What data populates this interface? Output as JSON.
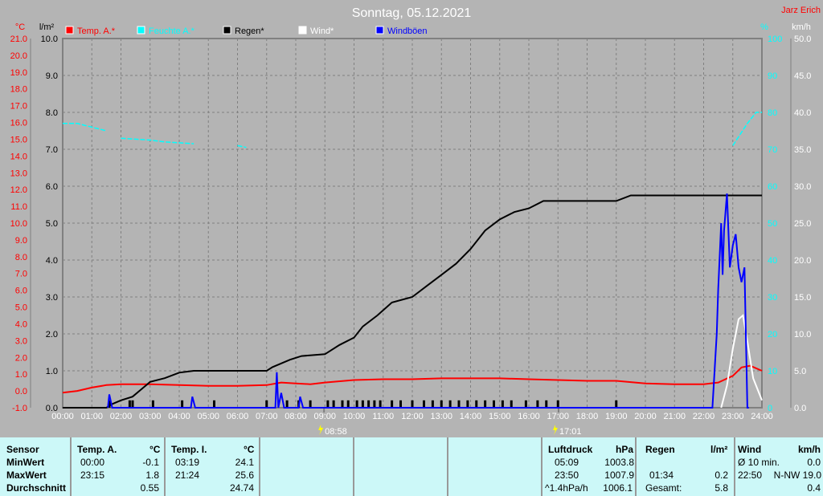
{
  "title": "Sonntag, 05.12.2021",
  "author": "Jarz Erich",
  "colors": {
    "temp": "#ff0000",
    "humidity": "#00ffff",
    "rain": "#000000",
    "wind": "#ffffff",
    "gust": "#0000ff",
    "background": "#b4b4b4",
    "table": "#ccf8f8"
  },
  "chart_data": {
    "type": "line",
    "title": "Sonntag, 05.12.2021",
    "legend": [
      {
        "name": "Temp. A.*",
        "color": "#ff0000"
      },
      {
        "name": "Feuchte A.*",
        "color": "#00ffff"
      },
      {
        "name": "Regen*",
        "color": "#000000"
      },
      {
        "name": "Wind*",
        "color": "#ffffff"
      },
      {
        "name": "Windböen",
        "color": "#0000ff"
      }
    ],
    "legend_placement": "top",
    "grid": true,
    "x_ticks": [
      "00:00",
      "01:00",
      "02:00",
      "03:00",
      "04:00",
      "05:00",
      "06:00",
      "07:00",
      "08:00",
      "09:00",
      "10:00",
      "11:00",
      "12:00",
      "13:00",
      "14:00",
      "15:00",
      "16:00",
      "17:00",
      "18:00",
      "19:00",
      "20:00",
      "21:00",
      "22:00",
      "23:00",
      "24:00"
    ],
    "x_range_hours": [
      0,
      24
    ],
    "axes": {
      "temp": {
        "unit": "°C",
        "range": [
          -1,
          21
        ],
        "step": 1
      },
      "rain": {
        "unit": "l/m²",
        "range": [
          0,
          10
        ],
        "step": 1
      },
      "humidity": {
        "unit": "%",
        "range": [
          0,
          100
        ],
        "step": 10
      },
      "wind": {
        "unit": "km/h",
        "range": [
          0,
          50
        ],
        "step": 5
      }
    },
    "annotations": [
      {
        "label": "08:58",
        "hour": 8.97,
        "type": "sunrise"
      },
      {
        "label": "17:01",
        "hour": 17.02,
        "type": "sunset"
      }
    ],
    "series": [
      {
        "name": "Temp. A.*",
        "axis": "temp",
        "color": "#ff0000",
        "points": [
          [
            0,
            -0.1
          ],
          [
            0.5,
            0.0
          ],
          [
            1,
            0.2
          ],
          [
            1.5,
            0.35
          ],
          [
            2,
            0.4
          ],
          [
            3,
            0.4
          ],
          [
            4,
            0.35
          ],
          [
            5,
            0.3
          ],
          [
            6,
            0.3
          ],
          [
            7,
            0.35
          ],
          [
            7.5,
            0.5
          ],
          [
            8,
            0.45
          ],
          [
            8.5,
            0.4
          ],
          [
            9,
            0.5
          ],
          [
            10,
            0.65
          ],
          [
            11,
            0.7
          ],
          [
            12,
            0.7
          ],
          [
            13,
            0.75
          ],
          [
            14,
            0.75
          ],
          [
            15,
            0.75
          ],
          [
            16,
            0.7
          ],
          [
            17,
            0.65
          ],
          [
            18,
            0.6
          ],
          [
            19,
            0.6
          ],
          [
            20,
            0.45
          ],
          [
            21,
            0.4
          ],
          [
            22,
            0.4
          ],
          [
            22.5,
            0.5
          ],
          [
            23,
            0.9
          ],
          [
            23.3,
            1.4
          ],
          [
            23.6,
            1.5
          ],
          [
            24,
            1.2
          ]
        ]
      },
      {
        "name": "Feuchte A.*",
        "axis": "humidity",
        "color": "#00ffff",
        "segments": [
          [
            [
              0,
              77
            ],
            [
              0.5,
              77
            ],
            [
              1,
              76
            ],
            [
              1.5,
              75
            ]
          ],
          [
            [
              2,
              73
            ],
            [
              3,
              72.5
            ],
            [
              3.5,
              72
            ],
            [
              4.5,
              71.5
            ]
          ],
          [
            [
              6,
              71
            ],
            [
              6.3,
              70.5
            ]
          ],
          [
            [
              23,
              71
            ],
            [
              23.5,
              77
            ],
            [
              23.8,
              80
            ],
            [
              24,
              80
            ]
          ]
        ]
      },
      {
        "name": "Regen*",
        "axis": "rain",
        "color": "#000000",
        "points": [
          [
            0,
            0
          ],
          [
            1.5,
            0
          ],
          [
            1.7,
            0.1
          ],
          [
            2,
            0.2
          ],
          [
            2.4,
            0.3
          ],
          [
            2.7,
            0.5
          ],
          [
            3,
            0.7
          ],
          [
            3.5,
            0.8
          ],
          [
            4,
            0.95
          ],
          [
            4.5,
            1.0
          ],
          [
            7,
            1.0
          ],
          [
            7.2,
            1.1
          ],
          [
            7.8,
            1.3
          ],
          [
            8.2,
            1.4
          ],
          [
            9,
            1.45
          ],
          [
            9.5,
            1.7
          ],
          [
            10,
            1.9
          ],
          [
            10.3,
            2.2
          ],
          [
            10.8,
            2.5
          ],
          [
            11.3,
            2.85
          ],
          [
            12,
            3.0
          ],
          [
            12.5,
            3.3
          ],
          [
            13,
            3.6
          ],
          [
            13.5,
            3.9
          ],
          [
            14,
            4.3
          ],
          [
            14.5,
            4.8
          ],
          [
            15,
            5.1
          ],
          [
            15.5,
            5.3
          ],
          [
            16,
            5.4
          ],
          [
            16.5,
            5.6
          ],
          [
            19,
            5.6
          ],
          [
            19.5,
            5.75
          ],
          [
            24,
            5.75
          ]
        ]
      },
      {
        "name": "Regen bars",
        "axis": "rain",
        "color": "#000000",
        "bars_hours": [
          1.6,
          2.3,
          2.4,
          3.1,
          4.1,
          5.2,
          7.0,
          7.7,
          8.1,
          8.5,
          9.1,
          9.3,
          9.6,
          9.8,
          10.1,
          10.3,
          10.5,
          10.7,
          10.9,
          11.3,
          11.6,
          12.0,
          12.4,
          12.7,
          13.0,
          13.3,
          13.6,
          13.9,
          14.2,
          14.5,
          14.8,
          15.1,
          15.4,
          15.9,
          16.3,
          16.6,
          17.0,
          19.0
        ],
        "bar_value": 0.2
      },
      {
        "name": "Wind*",
        "axis": "wind",
        "color": "#ffffff",
        "points": [
          [
            22.6,
            0
          ],
          [
            22.8,
            3
          ],
          [
            23.0,
            8
          ],
          [
            23.2,
            12
          ],
          [
            23.35,
            12.5
          ],
          [
            23.5,
            9
          ],
          [
            23.7,
            4
          ],
          [
            24,
            1
          ]
        ]
      },
      {
        "name": "Windböen",
        "axis": "wind",
        "color": "#0000ff",
        "points": [
          [
            1.55,
            0
          ],
          [
            1.6,
            1.8
          ],
          [
            1.7,
            0
          ],
          [
            4.4,
            0
          ],
          [
            4.45,
            1.5
          ],
          [
            4.55,
            0
          ],
          [
            7.3,
            0
          ],
          [
            7.35,
            4.8
          ],
          [
            7.4,
            0
          ],
          [
            7.5,
            2
          ],
          [
            7.6,
            0
          ],
          [
            8.1,
            0
          ],
          [
            8.15,
            1.5
          ],
          [
            8.25,
            0
          ],
          [
            22.3,
            0
          ],
          [
            22.45,
            10
          ],
          [
            22.5,
            16
          ],
          [
            22.6,
            25
          ],
          [
            22.65,
            18
          ],
          [
            22.7,
            24
          ],
          [
            22.8,
            29
          ],
          [
            22.9,
            19
          ],
          [
            23.0,
            22
          ],
          [
            23.1,
            23.5
          ],
          [
            23.2,
            19
          ],
          [
            23.3,
            17
          ],
          [
            23.4,
            19
          ],
          [
            23.5,
            0
          ],
          [
            23.55,
            0
          ]
        ]
      }
    ]
  },
  "table": {
    "temp_a": {
      "header": "Temp. A.",
      "unit": "°C",
      "min_time": "00:00",
      "min": "-0.1",
      "max_time": "23:15",
      "max": "1.8",
      "avg": "0.55"
    },
    "sensor": {
      "header": "Sensor",
      "min": "MinWert",
      "max": "MaxWert",
      "avg": "Durchschnitt"
    },
    "temp_i": {
      "header": "Temp. I.",
      "unit": "°C",
      "min_time": "03:19",
      "min": "24.1",
      "max_time": "21:24",
      "max": "25.6",
      "avg": "24.74"
    },
    "pressure": {
      "header": "Luftdruck",
      "unit": "hPa",
      "min_time": "05:09",
      "min": "1003.8",
      "max_time": "23:50",
      "max": "1007.9",
      "trend": "^1.4hPa/h",
      "avg": "1006.1"
    },
    "rain": {
      "header": "Regen",
      "unit": "l/m²",
      "max_time": "01:34",
      "max": "0.2",
      "total_label": "Gesamt:",
      "total": "5.8"
    },
    "wind": {
      "header": "Wind",
      "unit": "km/h",
      "avg_label": "Ø 10 min.",
      "avg": "0.0",
      "max_time": "22:50",
      "max": "N-NW 19.0",
      "last": "0.4"
    }
  }
}
